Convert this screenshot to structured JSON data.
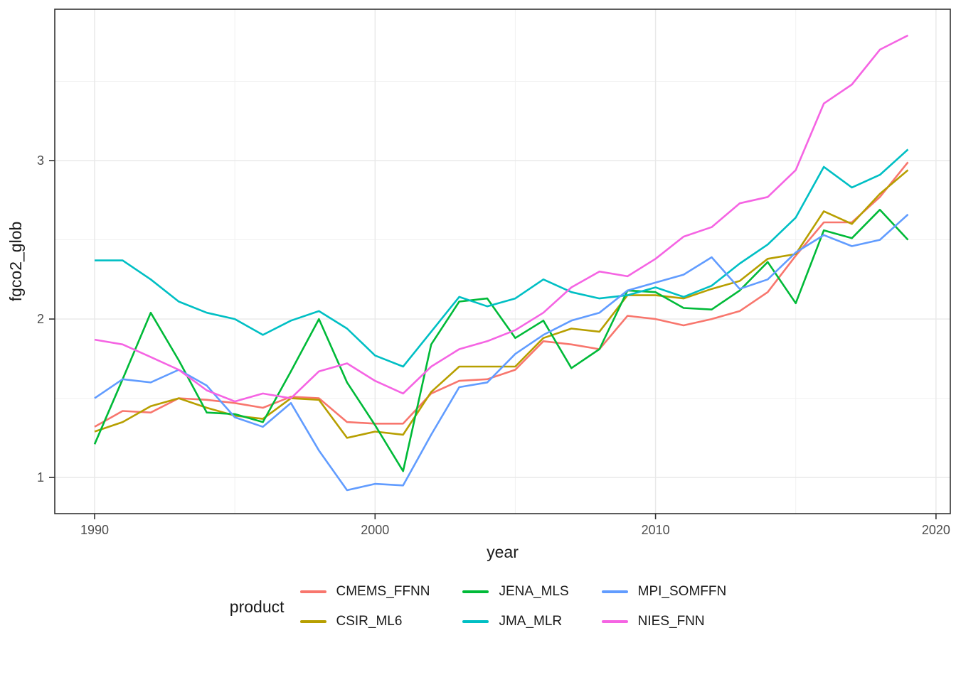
{
  "figure": {
    "x_axis_title": "year",
    "y_axis_title": "fgco2_glob",
    "legend_title": "product"
  },
  "chart_data": {
    "type": "line",
    "title": "",
    "xlabel": "year",
    "ylabel": "fgco2_glob",
    "legend_title": "product",
    "legend_position": "bottom",
    "grid": true,
    "xlim": [
      1988.58,
      2020.51
    ],
    "ylim": [
      0.772,
      3.955
    ],
    "x_major_ticks": [
      1990,
      2000,
      2010,
      2020
    ],
    "x_minor_ticks": [
      1995,
      2005,
      2015
    ],
    "y_major_ticks": [
      1,
      2,
      3
    ],
    "y_minor_ticks": [
      1.5,
      2.5,
      3.5
    ],
    "x": [
      1990,
      1991,
      1992,
      1993,
      1994,
      1995,
      1996,
      1997,
      1998,
      1999,
      2000,
      2001,
      2002,
      2003,
      2004,
      2005,
      2006,
      2007,
      2008,
      2009,
      2010,
      2011,
      2012,
      2013,
      2014,
      2015,
      2016,
      2017,
      2018,
      2019
    ],
    "series": [
      {
        "name": "CMEMS_FFNN",
        "color": "#F8766D",
        "values": [
          1.32,
          1.42,
          1.41,
          1.5,
          1.49,
          1.47,
          1.44,
          1.51,
          1.5,
          1.35,
          1.34,
          1.34,
          1.53,
          1.61,
          1.62,
          1.68,
          1.86,
          1.84,
          1.81,
          2.02,
          2.0,
          1.96,
          2.0,
          2.05,
          2.17,
          2.4,
          2.61,
          2.61,
          2.77,
          2.99
        ]
      },
      {
        "name": "CSIR_ML6",
        "color": "#B79F00",
        "values": [
          1.29,
          1.35,
          1.45,
          1.5,
          1.44,
          1.39,
          1.37,
          1.5,
          1.49,
          1.25,
          1.29,
          1.27,
          1.54,
          1.7,
          1.7,
          1.7,
          1.88,
          1.94,
          1.92,
          2.15,
          2.15,
          2.13,
          2.19,
          2.24,
          2.38,
          2.41,
          2.68,
          2.6,
          2.79,
          2.94
        ]
      },
      {
        "name": "JENA_MLS",
        "color": "#00BA38",
        "values": [
          1.21,
          1.62,
          2.04,
          1.74,
          1.41,
          1.4,
          1.35,
          1.67,
          2.0,
          1.6,
          1.33,
          1.04,
          1.84,
          2.11,
          2.13,
          1.88,
          1.99,
          1.69,
          1.81,
          2.18,
          2.17,
          2.07,
          2.06,
          2.18,
          2.36,
          2.1,
          2.56,
          2.51,
          2.69,
          2.5
        ]
      },
      {
        "name": "JMA_MLR",
        "color": "#00BFC4",
        "values": [
          2.37,
          2.37,
          2.25,
          2.11,
          2.04,
          2.0,
          1.9,
          1.99,
          2.05,
          1.94,
          1.77,
          1.7,
          1.92,
          2.14,
          2.08,
          2.13,
          2.25,
          2.17,
          2.13,
          2.15,
          2.2,
          2.14,
          2.21,
          2.35,
          2.47,
          2.64,
          2.96,
          2.83,
          2.91,
          3.07
        ]
      },
      {
        "name": "MPI_SOMFFN",
        "color": "#619CFF",
        "values": [
          1.5,
          1.62,
          1.6,
          1.68,
          1.58,
          1.38,
          1.32,
          1.47,
          1.17,
          0.92,
          0.96,
          0.95,
          1.27,
          1.57,
          1.6,
          1.78,
          1.9,
          1.99,
          2.04,
          2.18,
          2.23,
          2.28,
          2.39,
          2.19,
          2.25,
          2.42,
          2.53,
          2.46,
          2.5,
          2.66
        ]
      },
      {
        "name": "NIES_FNN",
        "color": "#F564E3",
        "values": [
          1.87,
          1.84,
          1.76,
          1.68,
          1.55,
          1.48,
          1.53,
          1.5,
          1.67,
          1.72,
          1.61,
          1.53,
          1.7,
          1.81,
          1.86,
          1.93,
          2.04,
          2.2,
          2.3,
          2.27,
          2.38,
          2.52,
          2.58,
          2.73,
          2.77,
          2.94,
          3.36,
          3.48,
          3.7,
          3.79
        ]
      }
    ],
    "style": {
      "background_color": "#FFFFFF",
      "panel_border_color": "#333333",
      "grid_major_color": "#E8E8E8",
      "grid_minor_color": "#F1F1F1",
      "tick_color": "#333333",
      "tick_label_color": "#4D4D4D",
      "axis_title_color": "#1a1a1a",
      "line_width": 2.6
    }
  }
}
